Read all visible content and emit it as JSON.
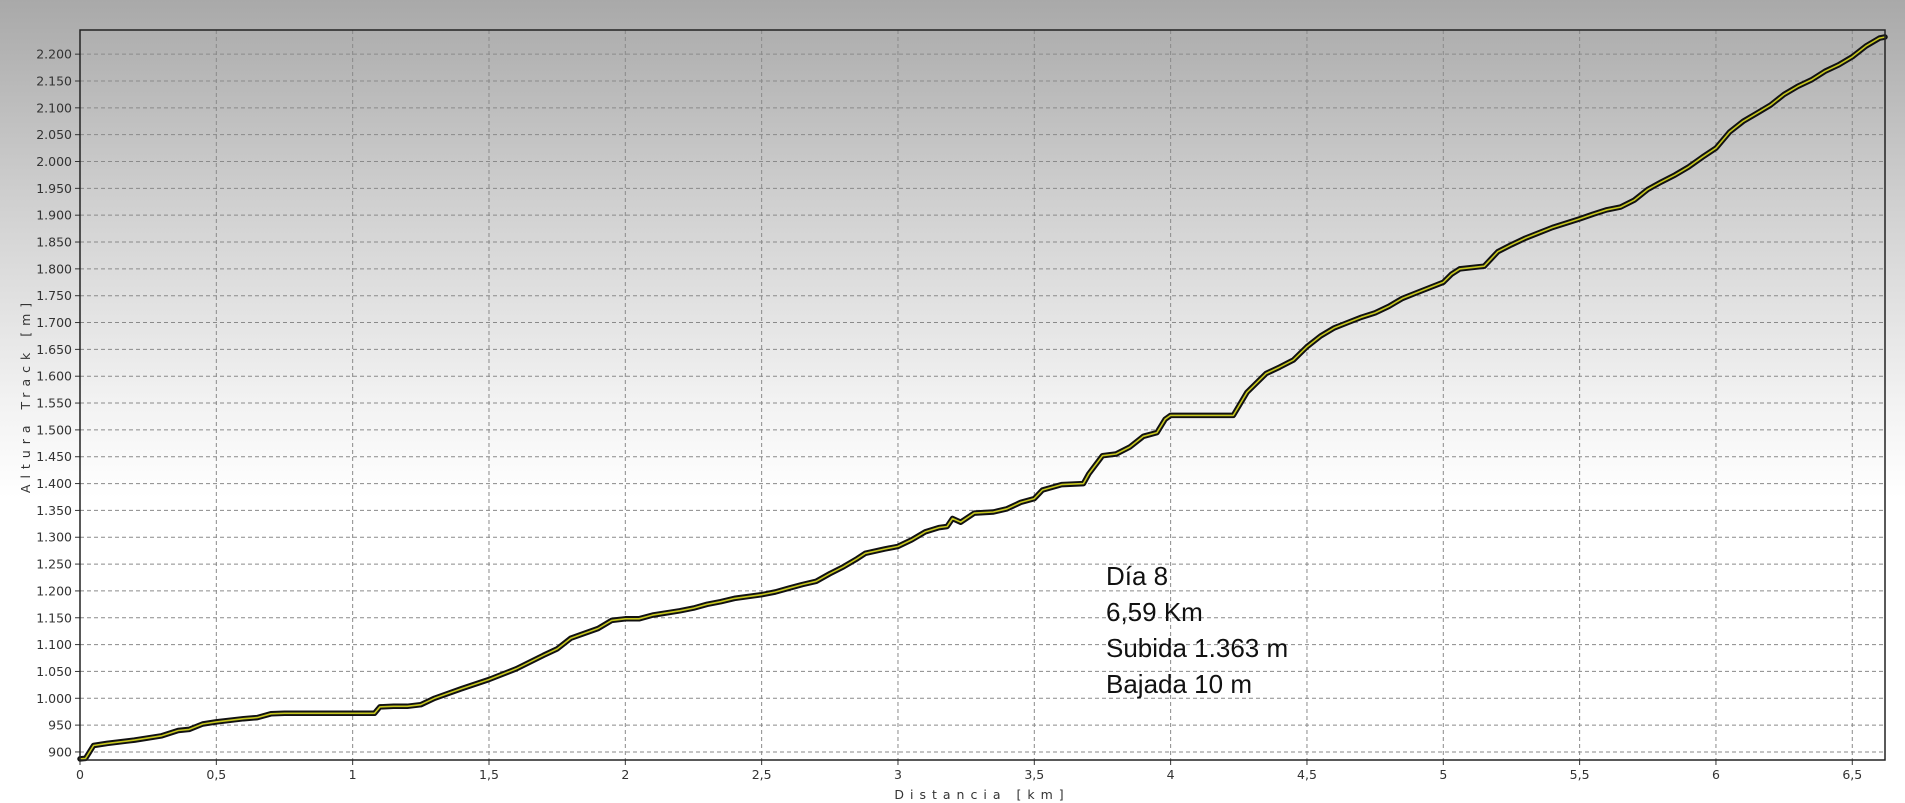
{
  "chart_data": {
    "type": "line",
    "xlabel": "Distancia [km]",
    "ylabel": "Altura Track [m]",
    "xlim": [
      0,
      6.62
    ],
    "ylim": [
      885,
      2245
    ],
    "grid": true,
    "x_ticks": [
      {
        "value": 0,
        "label": "0"
      },
      {
        "value": 0.5,
        "label": "0,5"
      },
      {
        "value": 1,
        "label": "1"
      },
      {
        "value": 1.5,
        "label": "1,5"
      },
      {
        "value": 2,
        "label": "2"
      },
      {
        "value": 2.5,
        "label": "2,5"
      },
      {
        "value": 3,
        "label": "3"
      },
      {
        "value": 3.5,
        "label": "3,5"
      },
      {
        "value": 4,
        "label": "4"
      },
      {
        "value": 4.5,
        "label": "4,5"
      },
      {
        "value": 5,
        "label": "5"
      },
      {
        "value": 5.5,
        "label": "5,5"
      },
      {
        "value": 6,
        "label": "6"
      },
      {
        "value": 6.5,
        "label": "6,5"
      }
    ],
    "y_ticks": [
      {
        "value": 900,
        "label": "900"
      },
      {
        "value": 950,
        "label": "950"
      },
      {
        "value": 1000,
        "label": "1.000"
      },
      {
        "value": 1050,
        "label": "1.050"
      },
      {
        "value": 1100,
        "label": "1.100"
      },
      {
        "value": 1150,
        "label": "1.150"
      },
      {
        "value": 1200,
        "label": "1.200"
      },
      {
        "value": 1250,
        "label": "1.250"
      },
      {
        "value": 1300,
        "label": "1.300"
      },
      {
        "value": 1350,
        "label": "1.350"
      },
      {
        "value": 1400,
        "label": "1.400"
      },
      {
        "value": 1450,
        "label": "1.450"
      },
      {
        "value": 1500,
        "label": "1.500"
      },
      {
        "value": 1550,
        "label": "1.550"
      },
      {
        "value": 1600,
        "label": "1.600"
      },
      {
        "value": 1650,
        "label": "1.650"
      },
      {
        "value": 1700,
        "label": "1.700"
      },
      {
        "value": 1750,
        "label": "1.750"
      },
      {
        "value": 1800,
        "label": "1.800"
      },
      {
        "value": 1850,
        "label": "1.850"
      },
      {
        "value": 1900,
        "label": "1.900"
      },
      {
        "value": 1950,
        "label": "1.950"
      },
      {
        "value": 2000,
        "label": "2.000"
      },
      {
        "value": 2050,
        "label": "2.050"
      },
      {
        "value": 2100,
        "label": "2.100"
      },
      {
        "value": 2150,
        "label": "2.150"
      },
      {
        "value": 2200,
        "label": "2.200"
      }
    ],
    "series": [
      {
        "color": "#c8c81e",
        "outline_color": "#111111",
        "points": [
          [
            0,
            887
          ],
          [
            0.02,
            888
          ],
          [
            0.05,
            912
          ],
          [
            0.1,
            916
          ],
          [
            0.2,
            922
          ],
          [
            0.3,
            930
          ],
          [
            0.36,
            940
          ],
          [
            0.4,
            942
          ],
          [
            0.45,
            952
          ],
          [
            0.5,
            956
          ],
          [
            0.6,
            962
          ],
          [
            0.65,
            964
          ],
          [
            0.7,
            971
          ],
          [
            0.75,
            972
          ],
          [
            0.8,
            972
          ],
          [
            0.9,
            972
          ],
          [
            1.0,
            972
          ],
          [
            1.08,
            972
          ],
          [
            1.1,
            984
          ],
          [
            1.15,
            985
          ],
          [
            1.2,
            985
          ],
          [
            1.25,
            988
          ],
          [
            1.3,
            1000
          ],
          [
            1.4,
            1018
          ],
          [
            1.5,
            1035
          ],
          [
            1.6,
            1055
          ],
          [
            1.7,
            1080
          ],
          [
            1.75,
            1092
          ],
          [
            1.8,
            1112
          ],
          [
            1.9,
            1130
          ],
          [
            1.95,
            1145
          ],
          [
            2.0,
            1148
          ],
          [
            2.05,
            1148
          ],
          [
            2.1,
            1155
          ],
          [
            2.2,
            1163
          ],
          [
            2.25,
            1168
          ],
          [
            2.3,
            1175
          ],
          [
            2.35,
            1180
          ],
          [
            2.4,
            1186
          ],
          [
            2.5,
            1193
          ],
          [
            2.55,
            1198
          ],
          [
            2.6,
            1205
          ],
          [
            2.65,
            1212
          ],
          [
            2.7,
            1218
          ],
          [
            2.75,
            1232
          ],
          [
            2.8,
            1245
          ],
          [
            2.85,
            1260
          ],
          [
            2.88,
            1270
          ],
          [
            2.95,
            1278
          ],
          [
            3.0,
            1283
          ],
          [
            3.05,
            1295
          ],
          [
            3.1,
            1310
          ],
          [
            3.15,
            1318
          ],
          [
            3.18,
            1320
          ],
          [
            3.2,
            1335
          ],
          [
            3.23,
            1328
          ],
          [
            3.28,
            1345
          ],
          [
            3.35,
            1347
          ],
          [
            3.4,
            1353
          ],
          [
            3.45,
            1365
          ],
          [
            3.5,
            1372
          ],
          [
            3.53,
            1388
          ],
          [
            3.6,
            1398
          ],
          [
            3.68,
            1400
          ],
          [
            3.7,
            1418
          ],
          [
            3.75,
            1452
          ],
          [
            3.8,
            1455
          ],
          [
            3.85,
            1468
          ],
          [
            3.9,
            1488
          ],
          [
            3.95,
            1495
          ],
          [
            3.98,
            1520
          ],
          [
            4.0,
            1527
          ],
          [
            4.1,
            1527
          ],
          [
            4.2,
            1527
          ],
          [
            4.23,
            1527
          ],
          [
            4.28,
            1570
          ],
          [
            4.35,
            1605
          ],
          [
            4.4,
            1617
          ],
          [
            4.45,
            1630
          ],
          [
            4.5,
            1655
          ],
          [
            4.55,
            1675
          ],
          [
            4.6,
            1690
          ],
          [
            4.65,
            1700
          ],
          [
            4.7,
            1710
          ],
          [
            4.75,
            1718
          ],
          [
            4.8,
            1730
          ],
          [
            4.85,
            1745
          ],
          [
            4.9,
            1755
          ],
          [
            5.0,
            1775
          ],
          [
            5.03,
            1790
          ],
          [
            5.06,
            1800
          ],
          [
            5.15,
            1805
          ],
          [
            5.2,
            1832
          ],
          [
            5.25,
            1845
          ],
          [
            5.3,
            1857
          ],
          [
            5.35,
            1867
          ],
          [
            5.4,
            1877
          ],
          [
            5.5,
            1893
          ],
          [
            5.55,
            1902
          ],
          [
            5.6,
            1910
          ],
          [
            5.65,
            1915
          ],
          [
            5.7,
            1928
          ],
          [
            5.75,
            1948
          ],
          [
            5.8,
            1962
          ],
          [
            5.85,
            1975
          ],
          [
            5.9,
            1990
          ],
          [
            5.95,
            2008
          ],
          [
            6.0,
            2025
          ],
          [
            6.05,
            2055
          ],
          [
            6.1,
            2075
          ],
          [
            6.15,
            2090
          ],
          [
            6.2,
            2105
          ],
          [
            6.25,
            2125
          ],
          [
            6.3,
            2140
          ],
          [
            6.35,
            2152
          ],
          [
            6.4,
            2168
          ],
          [
            6.45,
            2180
          ],
          [
            6.5,
            2195
          ],
          [
            6.55,
            2215
          ],
          [
            6.6,
            2230
          ],
          [
            6.62,
            2232
          ]
        ]
      }
    ],
    "annotation": [
      "Día 8",
      "6,59 Km",
      "Subida 1.363 m",
      "Bajada 10 m"
    ]
  }
}
